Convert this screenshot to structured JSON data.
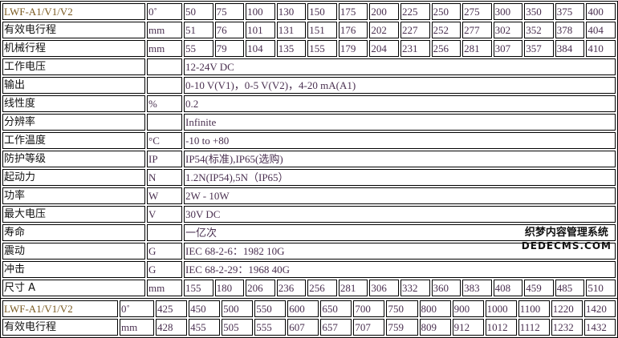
{
  "table1": {
    "header": {
      "model": "LWF-A1/V1/V2",
      "unit": "0˚",
      "values": [
        "50",
        "75",
        "100",
        "130",
        "150",
        "175",
        "200",
        "225",
        "250",
        "275",
        "300",
        "350",
        "375",
        "400"
      ]
    },
    "range_rows": [
      {
        "label": "有效电行程",
        "unit": "mm",
        "values": [
          "51",
          "76",
          "101",
          "131",
          "151",
          "176",
          "202",
          "227",
          "252",
          "277",
          "302",
          "352",
          "378",
          "404"
        ]
      },
      {
        "label": "机械行程",
        "unit": "mm",
        "values": [
          "55",
          "79",
          "104",
          "135",
          "155",
          "179",
          "204",
          "231",
          "256",
          "281",
          "307",
          "357",
          "384",
          "410"
        ]
      }
    ],
    "spec_rows": [
      {
        "label": "工作电压",
        "unit": "",
        "value": "12-24V DC"
      },
      {
        "label": "输出",
        "unit": "",
        "value": "0-10 V(V1)，0-5 V(V2)，4-20 mA(A1)"
      },
      {
        "label": "线性度",
        "unit": "%",
        "value": "0.2"
      },
      {
        "label": "分辨率",
        "unit": "",
        "value": "Infinite"
      },
      {
        "label": "工作温度",
        "unit": "°C",
        "value": "-10 to +80"
      },
      {
        "label": "防护等级",
        "unit": "IP",
        "value": "IP54(标准),IP65(选购)"
      },
      {
        "label": "起动力",
        "unit": "N",
        "value": "1.2N(IP54),5N（IP65）"
      },
      {
        "label": "功率",
        "unit": "W",
        "value": "2W - 10W"
      },
      {
        "label": "最大电压",
        "unit": "V",
        "value": "30V DC"
      },
      {
        "label": "寿命",
        "unit": "",
        "value": "一亿次"
      },
      {
        "label": "震动",
        "unit": "G",
        "value": "IEC 68-2-6：1982 10G"
      },
      {
        "label": "冲击",
        "unit": "G",
        "value": "IEC 68-2-29：1968 40G"
      }
    ],
    "size_row": {
      "label": "尺寸 A",
      "unit": "mm",
      "values": [
        "155",
        "180",
        "206",
        "236",
        "256",
        "281",
        "306",
        "332",
        "360",
        "383",
        "408",
        "459",
        "485",
        "510"
      ]
    }
  },
  "table2": {
    "header": {
      "model": "LWF-A1/V1/V2",
      "unit": "0˚",
      "values": [
        "425",
        "450",
        "500",
        "550",
        "600",
        "650",
        "700",
        "750",
        "800",
        "900",
        "1000",
        "1100",
        "1220",
        "1420"
      ]
    },
    "rows": [
      {
        "label": "有效电行程",
        "unit": "mm",
        "values": [
          "428",
          "455",
          "505",
          "555",
          "607",
          "657",
          "707",
          "759",
          "809",
          "912",
          "1012",
          "1112",
          "1232",
          "1432"
        ]
      }
    ]
  },
  "watermark": {
    "line1": "织梦内容管理系统",
    "line2": "DEDECMS.COM"
  }
}
